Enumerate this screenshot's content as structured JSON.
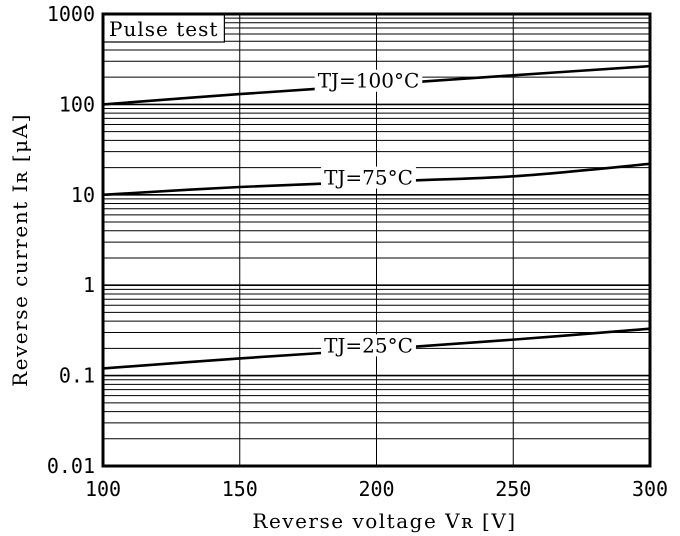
{
  "chart_data": {
    "type": "line",
    "title": "",
    "annotation": "Pulse test",
    "xlabel": "Reverse voltage Vʀ [V]",
    "ylabel": "Reverse current Iʀ [μA]",
    "x_scale": "linear",
    "y_scale": "log",
    "xlim": [
      100,
      300
    ],
    "ylim": [
      0.01,
      1000
    ],
    "x_ticks": [
      100,
      150,
      200,
      250,
      300
    ],
    "x_tick_labels": [
      "100",
      "150",
      "200",
      "250",
      "300"
    ],
    "y_ticks": [
      0.01,
      0.1,
      1,
      10,
      100,
      1000
    ],
    "y_tick_labels": [
      "0.01",
      "0.1",
      "1",
      "10",
      "100",
      "1000"
    ],
    "grid": true,
    "legend": "inline labels on curves",
    "line_color": "#000000",
    "series": [
      {
        "name": "TJ=100°C",
        "x": [
          100,
          150,
          200,
          250,
          300
        ],
        "values": [
          100,
          130,
          165,
          210,
          265
        ]
      },
      {
        "name": "TJ=75°C",
        "x": [
          100,
          150,
          200,
          250,
          300
        ],
        "values": [
          10,
          12.2,
          14,
          16,
          22
        ]
      },
      {
        "name": "TJ=25°C",
        "x": [
          100,
          150,
          200,
          250,
          300
        ],
        "values": [
          0.12,
          0.155,
          0.195,
          0.25,
          0.33
        ]
      }
    ]
  }
}
